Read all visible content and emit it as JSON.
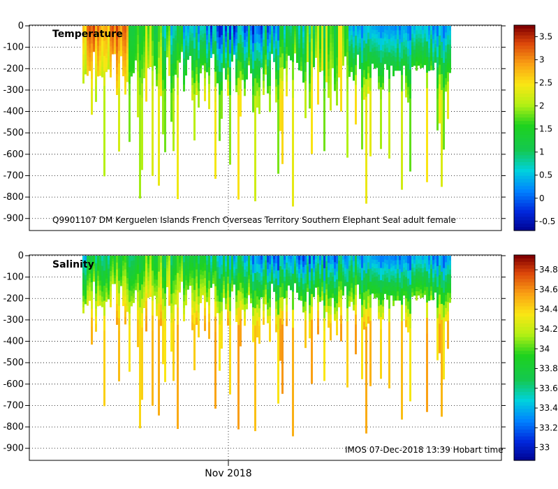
{
  "chart_data": [
    {
      "type": "heatmap",
      "title": "Temperature",
      "variable": "temperature",
      "ylabel": "",
      "xlabel": "Nov 2018",
      "ylim": [
        -950,
        0
      ],
      "yticks": [
        0,
        -100,
        -200,
        -300,
        -400,
        -500,
        -600,
        -700,
        -800,
        -900
      ],
      "ytick_labels": [
        "0",
        "-100",
        "-200",
        "-300",
        "-400",
        "-500",
        "-600",
        "-700",
        "-800",
        "-900"
      ],
      "colorbar": {
        "range": [
          -0.7,
          3.75
        ],
        "ticks": [
          3.5,
          3,
          2.5,
          2,
          1.5,
          1,
          0.5,
          0,
          -0.5
        ],
        "tick_labels": [
          "3.5",
          "3",
          "2.5",
          "2",
          "1.5",
          "1",
          "0.5",
          "0",
          "-0.5"
        ]
      },
      "annotation": "Q9901107 DM Kerguelen Islands French Overseas Territory Southern Elephant Seal adult female",
      "profile_depth_range": [
        -880,
        -100
      ],
      "surface_value_range": [
        -0.5,
        3.5
      ],
      "deep_value_range": [
        1.8,
        2.6
      ]
    },
    {
      "type": "heatmap",
      "title": "Salinity",
      "variable": "salinity",
      "ylabel": "",
      "xlabel": "Nov 2018",
      "ylim": [
        -950,
        0
      ],
      "yticks": [
        0,
        -100,
        -200,
        -300,
        -400,
        -500,
        -600,
        -700,
        -800,
        -900
      ],
      "ytick_labels": [
        "0",
        "-100",
        "-200",
        "-300",
        "-400",
        "-500",
        "-600",
        "-700",
        "-800",
        "-900"
      ],
      "colorbar": {
        "range": [
          32.87,
          34.95
        ],
        "ticks": [
          34.8,
          34.6,
          34.4,
          34.2,
          34,
          33.8,
          33.6,
          33.4,
          33.2,
          33
        ],
        "tick_labels": [
          "34.8",
          "34.6",
          "34.4",
          "34.2",
          "34",
          "33.8",
          "33.6",
          "33.4",
          "33.2",
          "33"
        ]
      },
      "annotation": "IMOS 07-Dec-2018 13:39 Hobart time",
      "profile_depth_range": [
        -880,
        -100
      ],
      "surface_value_range": [
        33.1,
        34.6
      ],
      "deep_value_range": [
        34.35,
        34.6
      ]
    }
  ],
  "x_axis": {
    "label": "Nov 2018"
  }
}
